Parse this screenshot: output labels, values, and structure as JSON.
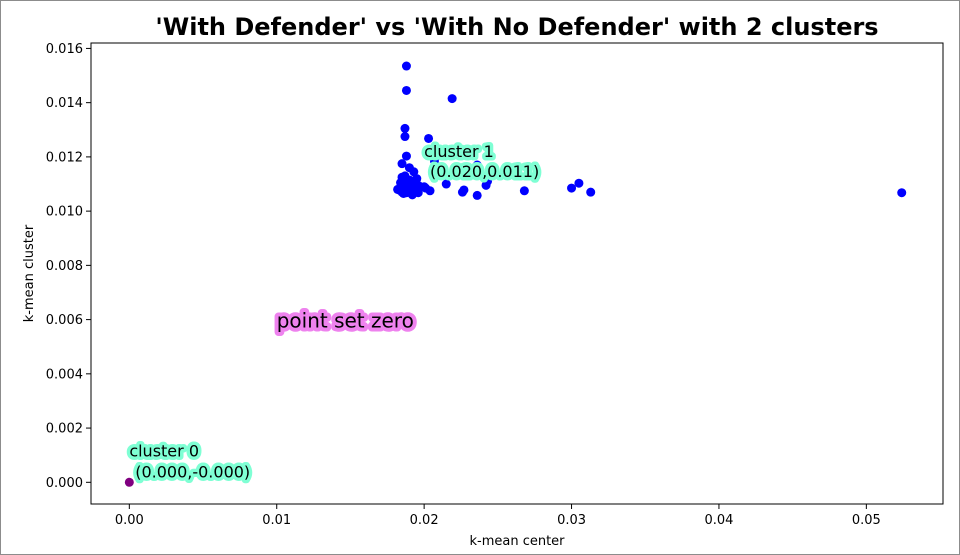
{
  "chart_data": {
    "type": "scatter",
    "title": "'With Defender' vs 'With No Defender' with 2 clusters",
    "xlabel": "k-mean center",
    "ylabel": "k-mean cluster",
    "xlim": [
      -0.0026,
      0.0552
    ],
    "ylim": [
      -0.0008,
      0.0162
    ],
    "xticks": [
      0.0,
      0.01,
      0.02,
      0.03,
      0.04,
      0.05
    ],
    "xtick_labels": [
      "0.00",
      "0.01",
      "0.02",
      "0.03",
      "0.04",
      "0.05"
    ],
    "yticks": [
      0.0,
      0.002,
      0.004,
      0.006,
      0.008,
      0.01,
      0.012,
      0.014,
      0.016
    ],
    "ytick_labels": [
      "0.000",
      "0.002",
      "0.004",
      "0.006",
      "0.008",
      "0.010",
      "0.012",
      "0.014",
      "0.016"
    ],
    "grid": false,
    "series": [
      {
        "color": "#0000ff",
        "points": [
          [
            0.0188,
            0.01535
          ],
          [
            0.0188,
            0.01445
          ],
          [
            0.0219,
            0.01415
          ],
          [
            0.0187,
            0.01305
          ],
          [
            0.0187,
            0.01275
          ],
          [
            0.0203,
            0.01268
          ],
          [
            0.0188,
            0.01203
          ],
          [
            0.0185,
            0.01175
          ],
          [
            0.0236,
            0.0117
          ],
          [
            0.0207,
            0.01185
          ],
          [
            0.019,
            0.0116
          ],
          [
            0.0193,
            0.01145
          ],
          [
            0.0187,
            0.0113
          ],
          [
            0.0185,
            0.01125
          ],
          [
            0.0195,
            0.0112
          ],
          [
            0.019,
            0.01115
          ],
          [
            0.0188,
            0.0111
          ],
          [
            0.0184,
            0.01105
          ],
          [
            0.0192,
            0.011
          ],
          [
            0.0196,
            0.01095
          ],
          [
            0.0186,
            0.0109
          ],
          [
            0.0189,
            0.01085
          ],
          [
            0.0194,
            0.0108
          ],
          [
            0.0183,
            0.01078
          ],
          [
            0.0187,
            0.01075
          ],
          [
            0.0191,
            0.01072
          ],
          [
            0.0185,
            0.0107
          ],
          [
            0.0196,
            0.01068
          ],
          [
            0.0182,
            0.0108
          ],
          [
            0.0188,
            0.01068
          ],
          [
            0.0192,
            0.0106
          ],
          [
            0.0186,
            0.01065
          ],
          [
            0.0201,
            0.01085
          ],
          [
            0.0204,
            0.01075
          ],
          [
            0.02,
            0.0109
          ],
          [
            0.0215,
            0.011
          ],
          [
            0.0226,
            0.0107
          ],
          [
            0.0227,
            0.01078
          ],
          [
            0.0236,
            0.01058
          ],
          [
            0.0242,
            0.01095
          ],
          [
            0.0243,
            0.0111
          ],
          [
            0.0268,
            0.01075
          ],
          [
            0.03,
            0.01085
          ],
          [
            0.0305,
            0.01103
          ],
          [
            0.0313,
            0.0107
          ],
          [
            0.0524,
            0.01068
          ]
        ]
      },
      {
        "color": "#800080",
        "points": [
          [
            0.0,
            0.0
          ]
        ]
      }
    ],
    "annotations": [
      {
        "text": "cluster 1",
        "x": 0.02,
        "y": 0.012,
        "bg": "#7fffd4",
        "size": "medium"
      },
      {
        "text": "(0.020,0.011)",
        "x": 0.0204,
        "y": 0.01125,
        "bg": "#7fffd4",
        "size": "medium"
      },
      {
        "text": "point set zero",
        "x": 0.01,
        "y": 0.0057,
        "bg": "#ee82ee",
        "size": "large"
      },
      {
        "text": "cluster 0",
        "x": 0.0,
        "y": 0.00095,
        "bg": "#7fffd4",
        "size": "medium"
      },
      {
        "text": "(0.000,-0.000)",
        "x": 0.0004,
        "y": 0.00018,
        "bg": "#7fffd4",
        "size": "medium"
      }
    ]
  }
}
